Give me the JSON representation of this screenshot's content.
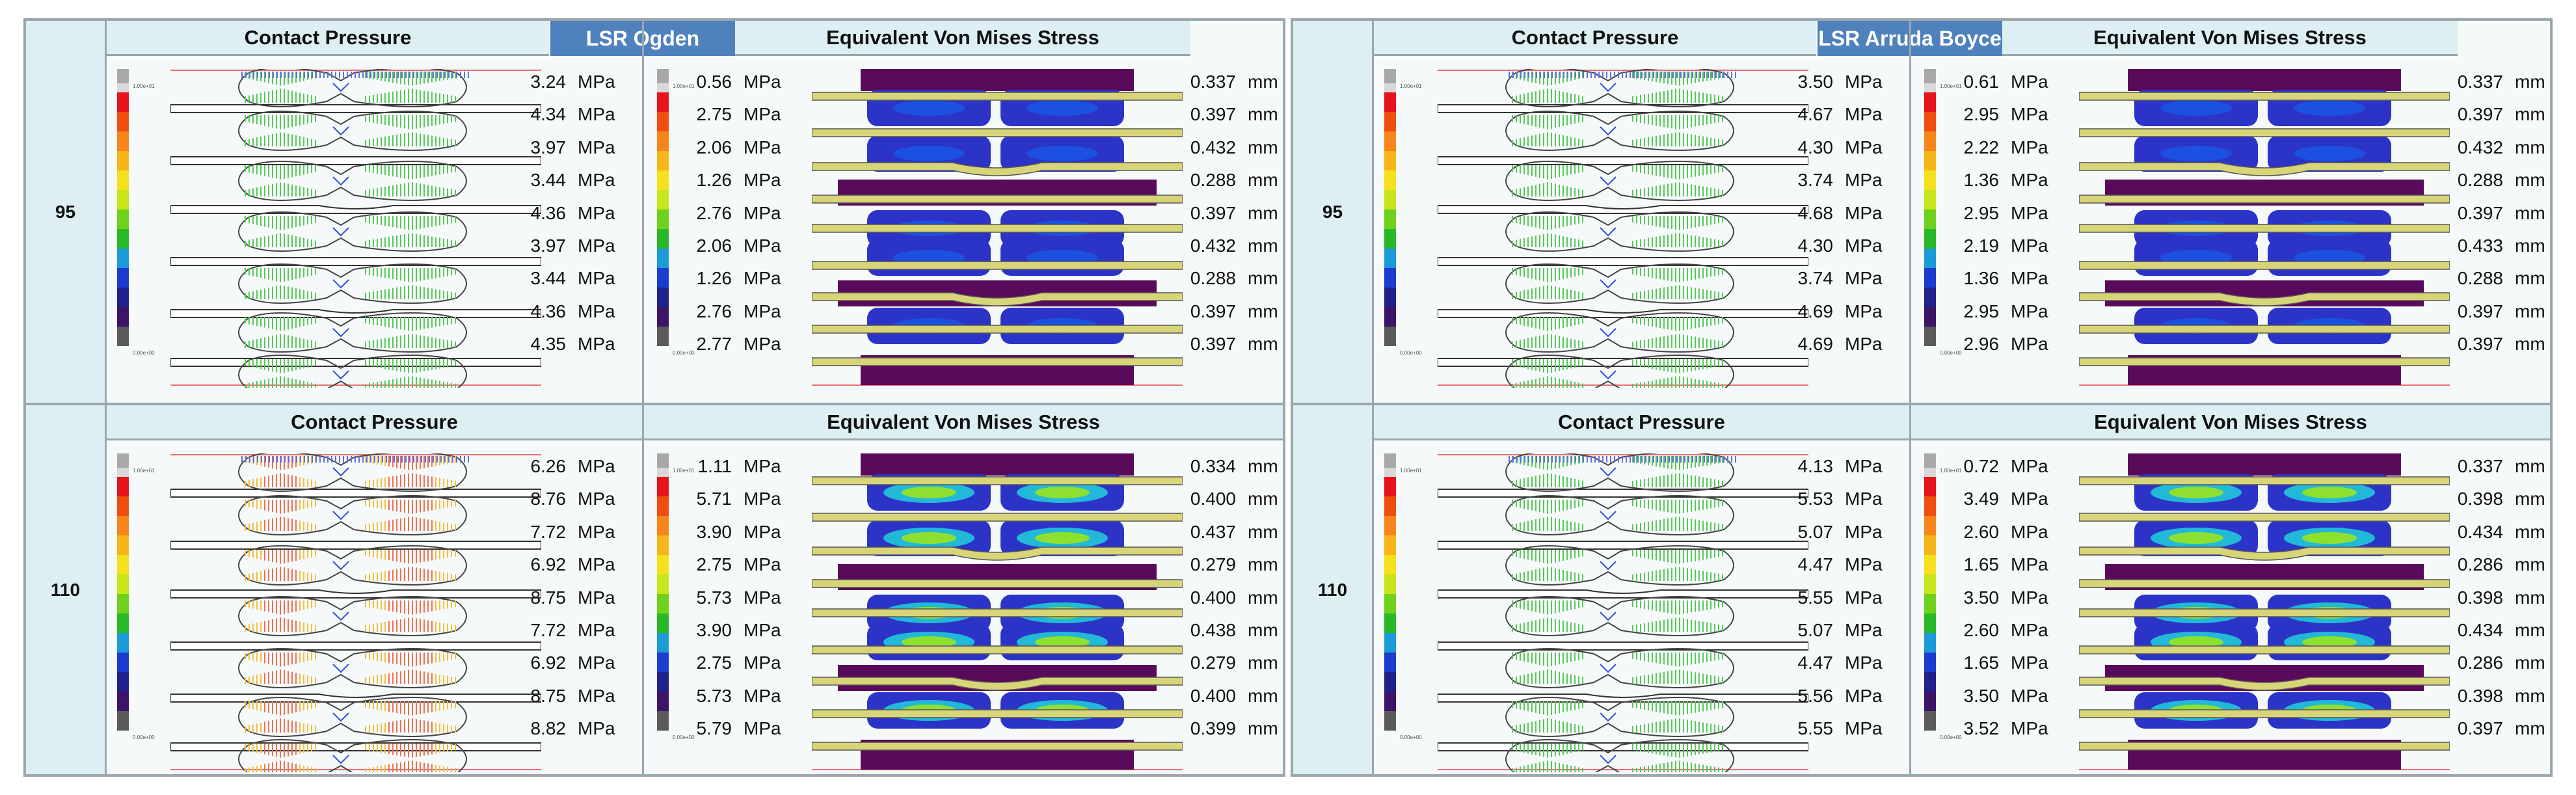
{
  "labels": {
    "cp": "Contact Pressure",
    "vm": "Equivalent Von  Mises Stress",
    "mpa": "MPa",
    "mm": "mm",
    "legend_top": "1.00e+01",
    "legend_bottom": "0.00e+00"
  },
  "models": [
    {
      "name": "LSR Ogden",
      "rows": [
        {
          "temp": "95",
          "cp": [
            "3.24",
            "4.34",
            "3.97",
            "3.44",
            "4.36",
            "3.97",
            "3.44",
            "4.36",
            "4.35"
          ],
          "vm": [
            "0.56",
            "2.75",
            "2.06",
            "1.26",
            "2.76",
            "2.06",
            "1.26",
            "2.76",
            "2.77"
          ],
          "disp": [
            "0.337",
            "0.397",
            "0.432",
            "0.288",
            "0.397",
            "0.432",
            "0.288",
            "0.397",
            "0.397"
          ]
        },
        {
          "temp": "110",
          "cp": [
            "6.26",
            "8.76",
            "7.72",
            "6.92",
            "8.75",
            "7.72",
            "6.92",
            "8.75",
            "8.82"
          ],
          "vm": [
            "1.11",
            "5.71",
            "3.90",
            "2.75",
            "5.73",
            "3.90",
            "2.75",
            "5.73",
            "5.79"
          ],
          "disp": [
            "0.334",
            "0.400",
            "0.437",
            "0.279",
            "0.400",
            "0.438",
            "0.279",
            "0.400",
            "0.399"
          ]
        }
      ]
    },
    {
      "name": "LSR Arruda Boyce",
      "rows": [
        {
          "temp": "95",
          "cp": [
            "3.50",
            "4.67",
            "4.30",
            "3.74",
            "4.68",
            "4.30",
            "3.74",
            "4.69",
            "4.69"
          ],
          "vm": [
            "0.61",
            "2.95",
            "2.22",
            "1.36",
            "2.95",
            "2.19",
            "1.36",
            "2.95",
            "2.96"
          ],
          "disp": [
            "0.337",
            "0.397",
            "0.432",
            "0.288",
            "0.397",
            "0.433",
            "0.288",
            "0.397",
            "0.397"
          ]
        },
        {
          "temp": "110",
          "cp": [
            "4.13",
            "5.53",
            "5.07",
            "4.47",
            "5.55",
            "5.07",
            "4.47",
            "5.56",
            "5.55"
          ],
          "vm": [
            "0.72",
            "3.49",
            "2.60",
            "1.65",
            "3.50",
            "2.60",
            "1.65",
            "3.50",
            "3.52"
          ],
          "disp": [
            "0.337",
            "0.398",
            "0.434",
            "0.286",
            "0.398",
            "0.434",
            "0.286",
            "0.398",
            "0.397"
          ]
        }
      ]
    }
  ]
}
